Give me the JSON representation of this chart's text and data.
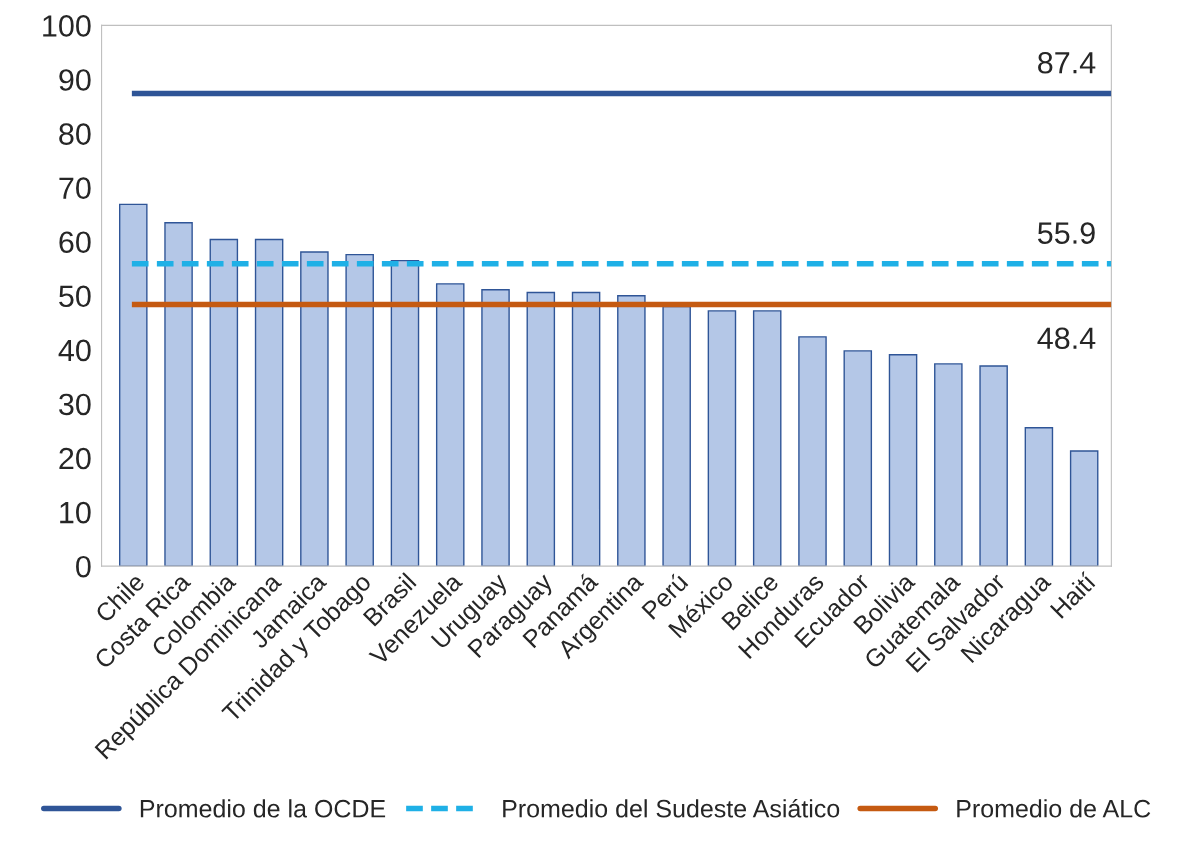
{
  "chart_data": {
    "type": "bar",
    "categories": [
      "Chile",
      "Costa Rica",
      "Colombia",
      "República Dominicana",
      "Jamaica",
      "Trinidad y Tobago",
      "Brasil",
      "Venezuela",
      "Uruguay",
      "Paraguay",
      "Panamá",
      "Argentina",
      "Perú",
      "México",
      "Belice",
      "Honduras",
      "Ecuador",
      "Bolivia",
      "Guatemala",
      "El Salvador",
      "Nicaragua",
      "Haití"
    ],
    "values": [
      66.9,
      63.5,
      60.4,
      60.4,
      58.1,
      57.6,
      56.5,
      52.2,
      51.1,
      50.6,
      50.6,
      50.0,
      48.0,
      47.2,
      47.2,
      42.4,
      39.8,
      39.1,
      37.4,
      37.0,
      25.6,
      21.3
    ],
    "color": "#b4c7e7",
    "ylim": [
      0,
      100
    ],
    "yticks": [
      0,
      10,
      20,
      30,
      40,
      50,
      60,
      70,
      80,
      90,
      100
    ],
    "grid": false,
    "legend": "bottom",
    "ref_lines": [
      {
        "axis": "y",
        "value": 87.4,
        "label": "Promedio de la OCDE",
        "color": "#2f5597",
        "line_style": "solid"
      },
      {
        "axis": "y",
        "value": 55.9,
        "label": "Promedio del Sudeste Asiático",
        "color": "#1fb0e6",
        "line_style": "dashed"
      },
      {
        "axis": "y",
        "value": 48.4,
        "label": "Promedio de ALC",
        "color": "#c55a11",
        "line_style": "solid"
      }
    ],
    "annotations": [
      {
        "text": "87.4",
        "y": 87.4
      },
      {
        "text": "55.9",
        "y": 55.9
      },
      {
        "text": "48.4",
        "y": 48.4
      }
    ]
  }
}
